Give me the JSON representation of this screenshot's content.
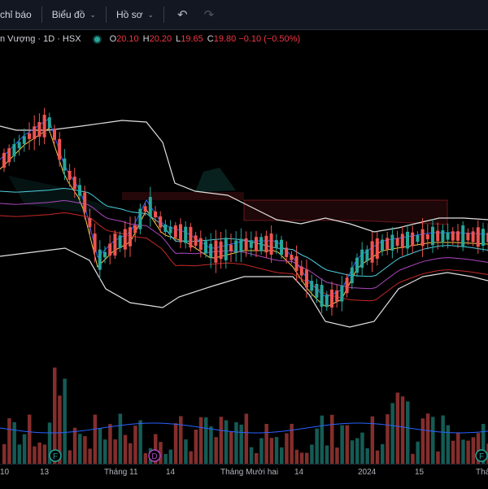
{
  "toolbar": {
    "indicators_label": "chỉ báo",
    "charts_label": "Biểu đồ",
    "profile_label": "Hồ sơ",
    "undo_icon": "undo-icon",
    "redo_icon": "redo-icon"
  },
  "legend": {
    "symbol": "n Vượng · 1D · HSX",
    "open_key": "O",
    "open": "20.10",
    "high_key": "H",
    "high": "20.20",
    "low_key": "L",
    "low": "19.65",
    "close_key": "C",
    "close": "19.80",
    "change": "−0.10 (−0.50%)",
    "status_color": "#26a69a",
    "down_color": "#f23645"
  },
  "x_axis": [
    {
      "label": "10"
    },
    {
      "label": "13"
    },
    {
      "label": "Tháng 11"
    },
    {
      "label": "14"
    },
    {
      "label": "Tháng Mười hai"
    },
    {
      "label": "14"
    },
    {
      "label": "2024"
    },
    {
      "label": "15"
    },
    {
      "label": "Tháng"
    }
  ],
  "markers": [
    "F",
    "D",
    "F"
  ],
  "colors": {
    "up": "#26a69a",
    "down": "#ef5350",
    "bollinger": "#e0e0e0",
    "background": "#000000"
  }
}
